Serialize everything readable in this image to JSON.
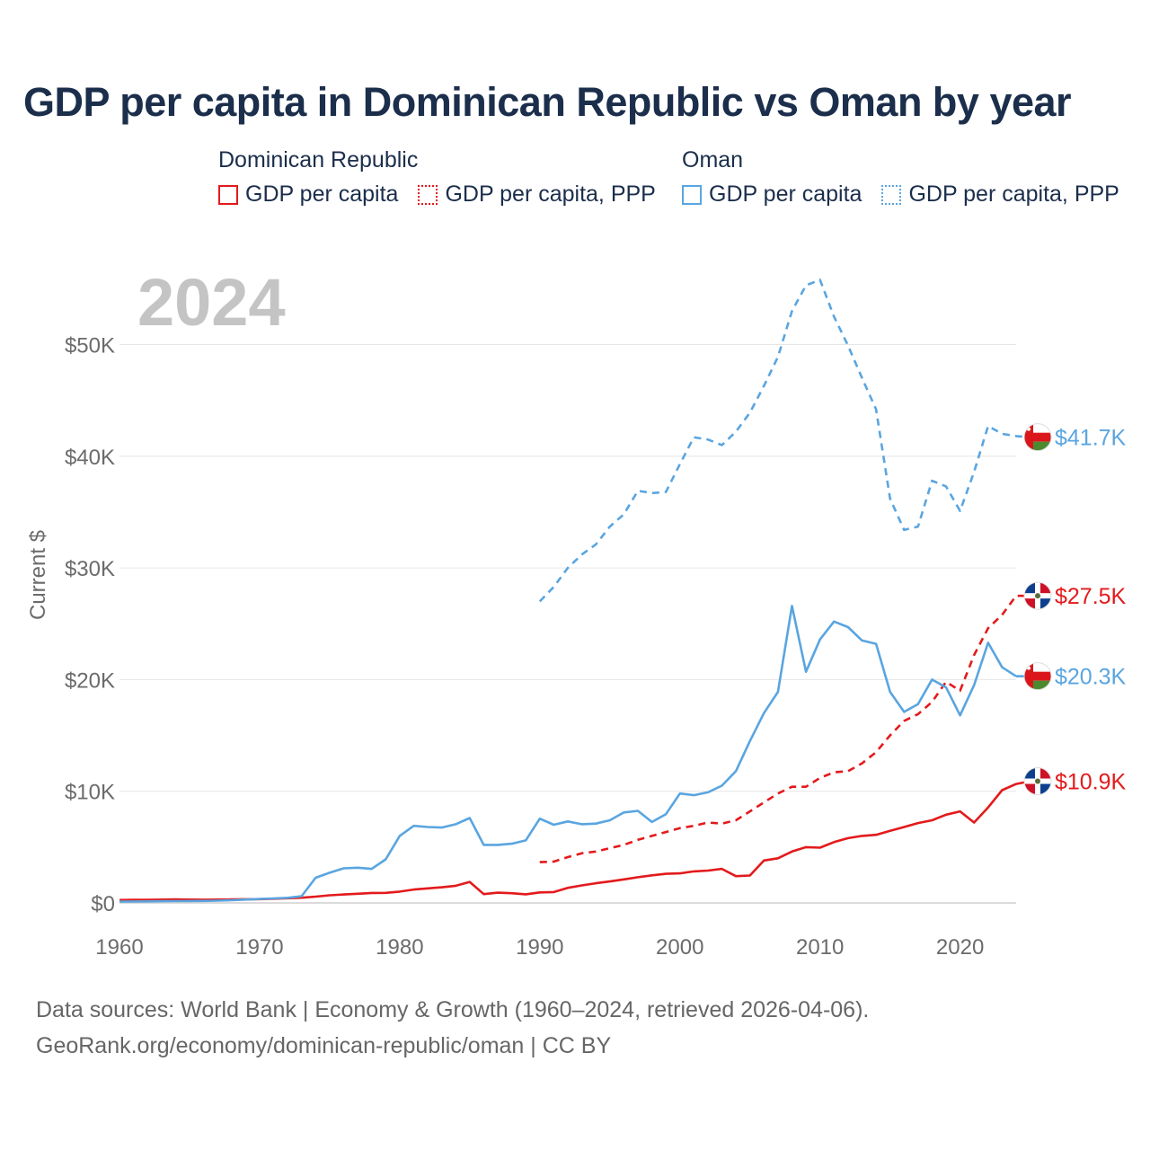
{
  "title": "GDP per capita in Dominican Republic vs Oman by year",
  "legend": {
    "groups": [
      {
        "name": "Dominican Republic",
        "color": "#e31a1c",
        "items": [
          {
            "label": "GDP per capita",
            "style": "solid"
          },
          {
            "label": "GDP per capita, PPP",
            "style": "dotted"
          }
        ]
      },
      {
        "name": "Oman",
        "color": "#5aa5e0",
        "items": [
          {
            "label": "GDP per capita",
            "style": "solid"
          },
          {
            "label": "GDP per capita, PPP",
            "style": "dotted"
          }
        ]
      }
    ]
  },
  "year_label": "2024",
  "footer": {
    "line1": "Data sources: World Bank | Economy & Growth (1960–2024, retrieved 2026-04-06).",
    "line2": "GeoRank.org/economy/dominican-republic/oman | CC BY"
  },
  "chart_data": {
    "type": "line",
    "title": "GDP per capita in Dominican Republic vs Oman by year",
    "xlabel": "",
    "ylabel": "Current $",
    "xlim": [
      1960,
      2024
    ],
    "ylim": [
      0,
      55000
    ],
    "x_ticks": [
      1960,
      1970,
      1980,
      1990,
      2000,
      2010,
      2020
    ],
    "x_tick_labels": [
      "1960",
      "1970",
      "1980",
      "1990",
      "2000",
      "2010",
      "2020"
    ],
    "y_ticks": [
      0,
      10000,
      20000,
      30000,
      40000,
      50000
    ],
    "y_tick_labels": [
      "$0",
      "$10K",
      "$20K",
      "$30K",
      "$40K",
      "$50K"
    ],
    "grid": true,
    "legend_position": "top",
    "series": [
      {
        "name": "Dominican Republic — GDP per capita",
        "country": "Dominican Republic",
        "color": "#e31a1c",
        "dash": "solid",
        "end_label": "$10.9K",
        "flag": "dominican-republic",
        "start_year": 1960,
        "values": [
          260,
          270,
          280,
          300,
          310,
          300,
          290,
          300,
          310,
          330,
          340,
          380,
          420,
          470,
          560,
          680,
          760,
          820,
          890,
          900,
          1010,
          1200,
          1300,
          1400,
          1540,
          1880,
          790,
          920,
          870,
          770,
          940,
          970,
          1350,
          1570,
          1760,
          1920,
          2110,
          2300,
          2470,
          2610,
          2650,
          2820,
          2900,
          3050,
          2400,
          2450,
          3800,
          4000,
          4600,
          5000,
          4950,
          5450,
          5800,
          6000,
          6100,
          6450,
          6800,
          7150,
          7400,
          7900,
          8200,
          7200,
          8550,
          10100,
          10650,
          10900
        ]
      },
      {
        "name": "Dominican Republic — GDP per capita, PPP",
        "country": "Dominican Republic",
        "color": "#e31a1c",
        "dash": "dashed",
        "end_label": "$27.5K",
        "flag": "dominican-republic",
        "start_year": 1990,
        "values": [
          3650,
          3700,
          4100,
          4450,
          4600,
          4900,
          5200,
          5650,
          6000,
          6350,
          6700,
          6900,
          7200,
          7100,
          7400,
          8200,
          9000,
          9800,
          10400,
          10400,
          11200,
          11700,
          11800,
          12500,
          13500,
          15000,
          16300,
          16900,
          18000,
          19800,
          19000,
          22200,
          24600,
          25800,
          27500,
          27500
        ]
      },
      {
        "name": "Oman — GDP per capita",
        "country": "Oman",
        "color": "#5aa5e0",
        "dash": "solid",
        "end_label": "$20.3K",
        "flag": "oman",
        "start_year": 1960,
        "values": [
          120,
          130,
          140,
          150,
          160,
          170,
          180,
          200,
          240,
          300,
          350,
          400,
          460,
          600,
          2250,
          2700,
          3100,
          3150,
          3050,
          3900,
          6000,
          6900,
          6800,
          6750,
          7050,
          7600,
          5200,
          5200,
          5300,
          5600,
          7550,
          7000,
          7300,
          7050,
          7100,
          7400,
          8100,
          8250,
          7250,
          7950,
          9800,
          9650,
          9900,
          10500,
          11800,
          14500,
          17000,
          18900,
          26600,
          20700,
          23600,
          25200,
          24700,
          23500,
          23200,
          18900,
          17100,
          17800,
          20000,
          19300,
          16800,
          19500,
          23300,
          21100,
          20300
        ]
      },
      {
        "name": "Oman — GDP per capita, PPP",
        "country": "Oman",
        "color": "#5aa5e0",
        "dash": "dashed",
        "end_label": "$41.7K",
        "flag": "oman",
        "start_year": 1990,
        "values": [
          27000,
          28300,
          30000,
          31200,
          32100,
          33700,
          34800,
          36900,
          36700,
          36800,
          39300,
          41700,
          41500,
          41000,
          42200,
          43900,
          46300,
          48900,
          53000,
          55300,
          55800,
          52500,
          49900,
          47000,
          44200,
          36200,
          33400,
          33700,
          37800,
          37300,
          35100,
          38600,
          42700,
          42000,
          41800,
          41700
        ]
      }
    ]
  }
}
